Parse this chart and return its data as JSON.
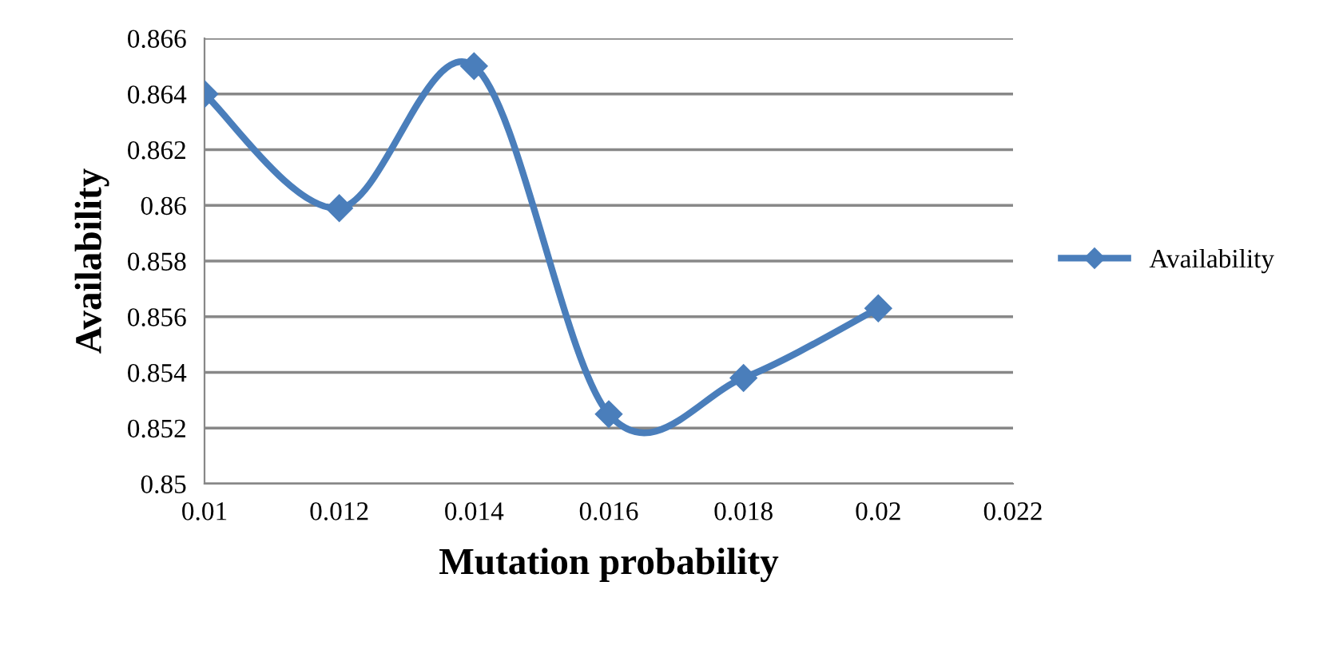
{
  "chart_data": {
    "type": "line",
    "xlabel": "Mutation probability",
    "ylabel": "Availability",
    "x": [
      0.01,
      0.012,
      0.014,
      0.016,
      0.018,
      0.02
    ],
    "series": [
      {
        "name": "Availability",
        "color": "#4a7ebb",
        "values": [
          0.864,
          0.8599,
          0.865,
          0.8525,
          0.8538,
          0.8563
        ]
      }
    ],
    "xlim": [
      0.01,
      0.022
    ],
    "xticks": [
      0.01,
      0.012,
      0.014,
      0.016,
      0.018,
      0.02,
      0.022
    ],
    "ylim": [
      0.85,
      0.866
    ],
    "yticks": [
      0.85,
      0.852,
      0.854,
      0.856,
      0.858,
      0.86,
      0.862,
      0.864,
      0.866
    ],
    "grid": "y",
    "legend": "right",
    "marker": "diamond",
    "line_style": "solid"
  }
}
